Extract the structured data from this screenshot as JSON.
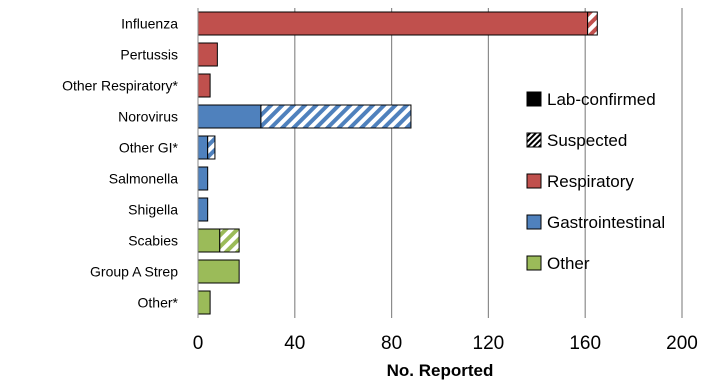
{
  "chart_data": {
    "type": "bar",
    "orientation": "horizontal",
    "stacked": true,
    "categories": [
      "Influenza",
      "Pertussis",
      "Other Respiratory*",
      "Norovirus",
      "Other GI*",
      "Salmonella",
      "Shigella",
      "Scabies",
      "Group A Strep",
      "Other*"
    ],
    "groups": [
      "Respiratory",
      "Respiratory",
      "Respiratory",
      "Gastrointestinal",
      "Gastrointestinal",
      "Gastrointestinal",
      "Gastrointestinal",
      "Other",
      "Other",
      "Other"
    ],
    "series": [
      {
        "name": "Lab-confirmed",
        "values": [
          161,
          8,
          5,
          26,
          4,
          4,
          4,
          9,
          17,
          5
        ]
      },
      {
        "name": "Suspected",
        "values": [
          4,
          0,
          0,
          62,
          3,
          0,
          0,
          8,
          0,
          0
        ]
      }
    ],
    "xlabel": "No. Reported",
    "xlim": [
      0,
      200
    ],
    "xticks": [
      "0",
      "40",
      "80",
      "120",
      "160",
      "200"
    ],
    "xtick_values": [
      0,
      40,
      80,
      120,
      160,
      200
    ],
    "grid": "vertical",
    "legend": {
      "placement": "right",
      "entries": [
        {
          "label": "Lab-confirmed",
          "swatch": "solid-black"
        },
        {
          "label": "Suspected",
          "swatch": "hatched"
        },
        {
          "label": "Respiratory",
          "swatch": "Respiratory"
        },
        {
          "label": "Gastrointestinal",
          "swatch": "Gastrointestinal"
        },
        {
          "label": "Other",
          "swatch": "Other"
        }
      ]
    },
    "colors": {
      "Respiratory": "#c0504d",
      "Gastrointestinal": "#4f81bd",
      "Other": "#9bbb59"
    }
  }
}
